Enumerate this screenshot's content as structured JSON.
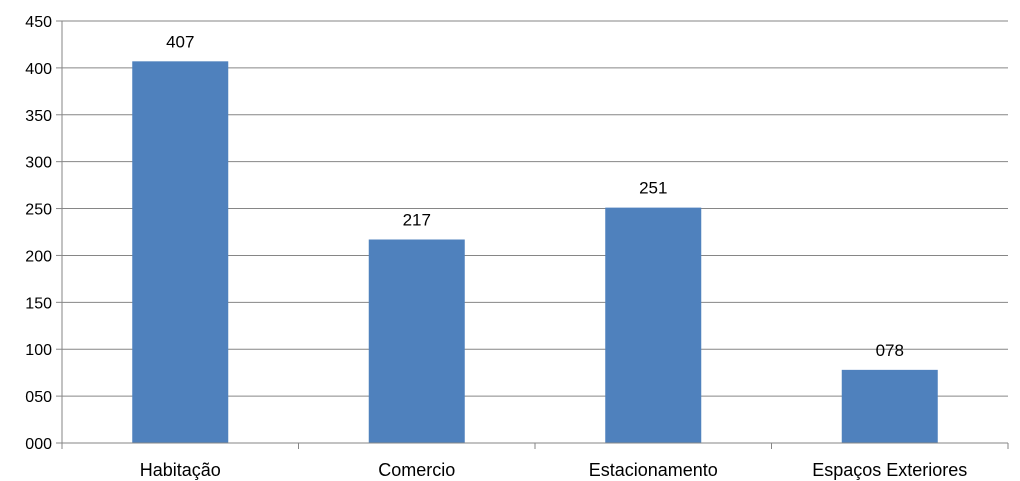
{
  "chart_data": {
    "type": "bar",
    "categories": [
      "Habitação",
      "Comercio",
      "Estacionamento",
      "Espaços Exteriores"
    ],
    "values": [
      407,
      217,
      251,
      78
    ],
    "data_labels": [
      "407",
      "217",
      "251",
      "078"
    ],
    "y_ticks": [
      "000",
      "050",
      "100",
      "150",
      "200",
      "250",
      "300",
      "350",
      "400",
      "450"
    ],
    "ylim": [
      0,
      450
    ],
    "grid": true,
    "legend": "none"
  },
  "colors": {
    "bar": "#4F81BD",
    "grid": "#868686",
    "axis": "#868686"
  }
}
